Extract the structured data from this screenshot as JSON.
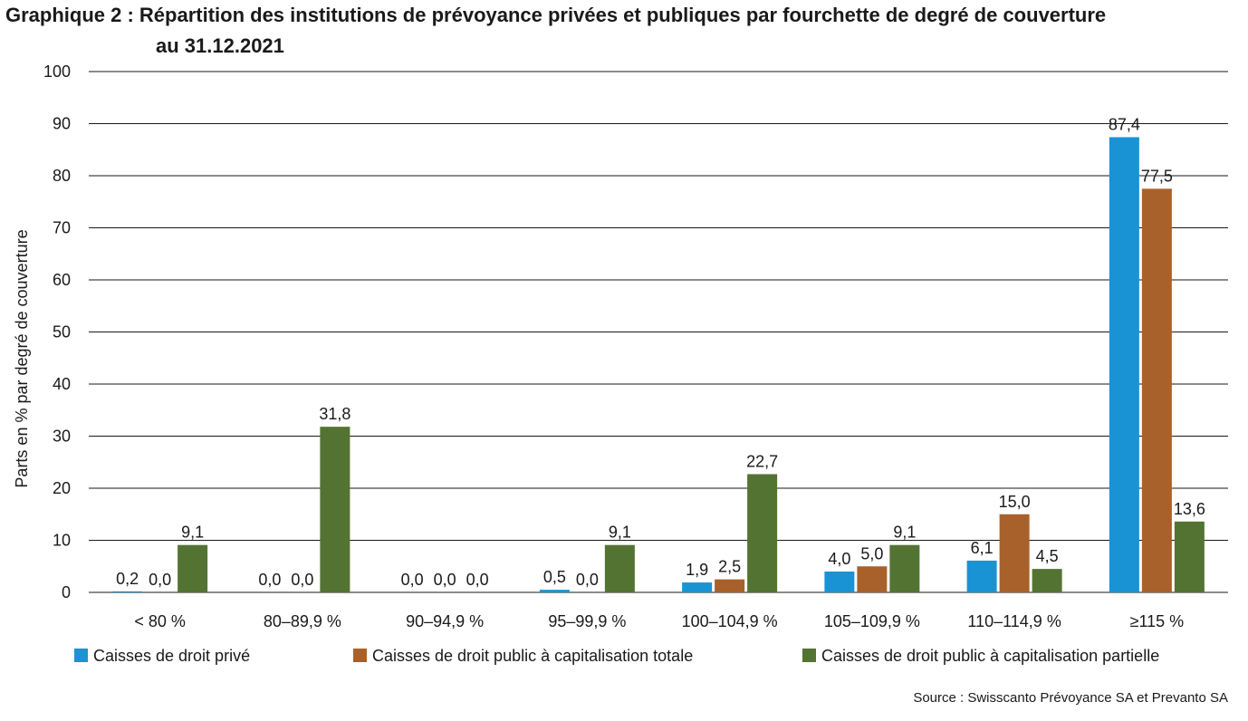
{
  "title_line1": "Graphique 2 : Répartition des institutions de prévoyance privées et publiques par fourchette de degré de couverture",
  "title_line2": "au 31.12.2021",
  "source": "Source : Swisscanto Prévoyance SA et Prevanto SA",
  "colors": {
    "series1": "#1a93d5",
    "series2": "#a8612a",
    "series3": "#537333",
    "grid": "#1a1a1a"
  },
  "chart_data": {
    "type": "bar",
    "ylabel": "Parts en % par degré de couverture",
    "xlabel": "",
    "ylim": [
      0,
      100
    ],
    "yticks": [
      0,
      10,
      20,
      30,
      40,
      50,
      60,
      70,
      80,
      90,
      100
    ],
    "grid": true,
    "legend_position": "bottom",
    "categories": [
      "< 80 %",
      "80–89,9 %",
      "90–94,9 %",
      "95–99,9 %",
      "100–104,9 %",
      "105–109,9 %",
      "110–114,9 %",
      "≥115 %"
    ],
    "series": [
      {
        "name": "Caisses de droit privé",
        "values": [
          0.2,
          0.0,
          0.0,
          0.5,
          1.9,
          4.0,
          6.1,
          87.4
        ],
        "labels": [
          "0,2",
          "0,0",
          "0,0",
          "0,5",
          "1,9",
          "4,0",
          "6,1",
          "87,4"
        ]
      },
      {
        "name": "Caisses de droit public à capitalisation totale",
        "values": [
          0.0,
          0.0,
          0.0,
          0.0,
          2.5,
          5.0,
          15.0,
          77.5
        ],
        "labels": [
          "0,0",
          "0,0",
          "0,0",
          "0,0",
          "2,5",
          "5,0",
          "15,0",
          "77,5"
        ]
      },
      {
        "name": "Caisses de droit public à capitalisation partielle",
        "values": [
          9.1,
          31.8,
          0.0,
          9.1,
          22.7,
          9.1,
          4.5,
          13.6
        ],
        "labels": [
          "9,1",
          "31,8",
          "0,0",
          "9,1",
          "22,7",
          "9,1",
          "4,5",
          "13,6"
        ]
      }
    ]
  }
}
